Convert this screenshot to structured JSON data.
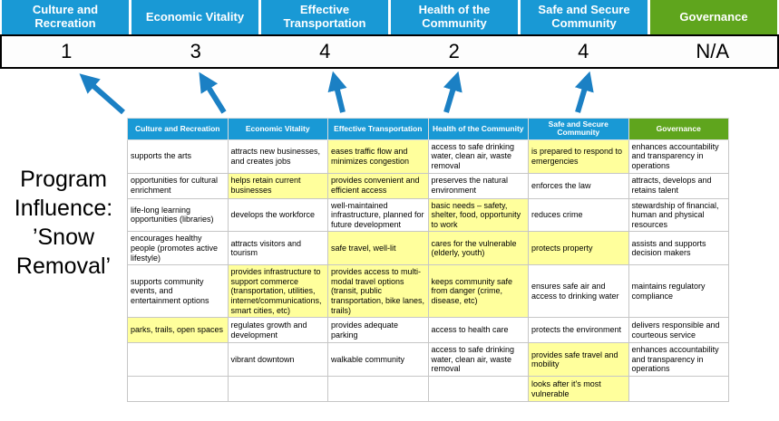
{
  "title": "Program Influence: ’Snow Removal’",
  "colors": {
    "header_blue": "#1999d5",
    "header_green": "#5fa51d",
    "highlight_yellow": "#ffff9c",
    "arrow_blue": "#1b80c4",
    "score_border": "#000000"
  },
  "scoreboard": {
    "columns": [
      {
        "label": "Culture and Recreation",
        "score": "1",
        "theme": "blue"
      },
      {
        "label": "Economic Vitality",
        "score": "3",
        "theme": "blue"
      },
      {
        "label": "Effective Transportation",
        "score": "4",
        "theme": "blue"
      },
      {
        "label": "Health of the Community",
        "score": "2",
        "theme": "blue"
      },
      {
        "label": "Safe and Secure Community",
        "score": "4",
        "theme": "blue"
      },
      {
        "label": "Governance",
        "score": "N/A",
        "theme": "green"
      }
    ]
  },
  "matrix": {
    "headers": [
      {
        "label": "Culture and Recreation",
        "theme": "blue"
      },
      {
        "label": "Economic Vitality",
        "theme": "blue"
      },
      {
        "label": "Effective Transportation",
        "theme": "blue"
      },
      {
        "label": "Health of the Community",
        "theme": "blue"
      },
      {
        "label": "Safe and Secure Community",
        "theme": "blue"
      },
      {
        "label": "Governance",
        "theme": "green"
      }
    ],
    "rows": [
      [
        {
          "text": "supports the arts",
          "highlight": false
        },
        {
          "text": "attracts new businesses, and creates jobs",
          "highlight": false
        },
        {
          "text": "eases traffic flow and minimizes congestion",
          "highlight": true
        },
        {
          "text": "access to safe drinking water, clean air, waste removal",
          "highlight": false
        },
        {
          "text": "is prepared to respond to emergencies",
          "highlight": true
        },
        {
          "text": "enhances accountability and transparency in operations",
          "highlight": false
        }
      ],
      [
        {
          "text": "opportunities for cultural enrichment",
          "highlight": false
        },
        {
          "text": "helps retain current businesses",
          "highlight": true
        },
        {
          "text": "provides convenient and efficient access",
          "highlight": true
        },
        {
          "text": "preserves the natural environment",
          "highlight": false
        },
        {
          "text": "enforces the law",
          "highlight": false
        },
        {
          "text": "attracts, develops and retains talent",
          "highlight": false
        }
      ],
      [
        {
          "text": "life-long learning opportunities (libraries)",
          "highlight": false
        },
        {
          "text": "develops the workforce",
          "highlight": false
        },
        {
          "text": "well-maintained infrastructure, planned for future development",
          "highlight": false
        },
        {
          "text": "basic needs – safety, shelter, food, opportunity to work",
          "highlight": true
        },
        {
          "text": "reduces crime",
          "highlight": false
        },
        {
          "text": "stewardship of financial, human and physical resources",
          "highlight": false
        }
      ],
      [
        {
          "text": "encourages healthy people (promotes active lifestyle)",
          "highlight": false
        },
        {
          "text": "attracts visitors and tourism",
          "highlight": false
        },
        {
          "text": "safe travel, well-lit",
          "highlight": true
        },
        {
          "text": "cares for the vulnerable (elderly, youth)",
          "highlight": true
        },
        {
          "text": "protects property",
          "highlight": true
        },
        {
          "text": "assists and supports decision makers",
          "highlight": false
        }
      ],
      [
        {
          "text": "supports community events, and entertainment options",
          "highlight": false
        },
        {
          "text": "provides infrastructure to support commerce (transportation, utilities, internet/communications, smart cities, etc)",
          "highlight": true
        },
        {
          "text": "provides access to multi-modal travel options (transit, public transportation, bike lanes, trails)",
          "highlight": true
        },
        {
          "text": "keeps community safe from danger (crime, disease, etc)",
          "highlight": true
        },
        {
          "text": "ensures safe air and access to drinking water",
          "highlight": false
        },
        {
          "text": "maintains regulatory compliance",
          "highlight": false
        }
      ],
      [
        {
          "text": "parks, trails, open spaces",
          "highlight": true
        },
        {
          "text": "regulates growth and development",
          "highlight": false
        },
        {
          "text": "provides adequate parking",
          "highlight": false
        },
        {
          "text": "access to health care",
          "highlight": false
        },
        {
          "text": "protects the environment",
          "highlight": false
        },
        {
          "text": "delivers responsible and courteous service",
          "highlight": false
        }
      ],
      [
        {
          "text": "",
          "highlight": false
        },
        {
          "text": "vibrant downtown",
          "highlight": false
        },
        {
          "text": "walkable community",
          "highlight": false
        },
        {
          "text": "access to safe drinking water, clean air, waste removal",
          "highlight": false
        },
        {
          "text": "provides safe travel and mobility",
          "highlight": true
        },
        {
          "text": "enhances accountability and transparency in operations",
          "highlight": false
        }
      ],
      [
        {
          "text": "",
          "highlight": false
        },
        {
          "text": "",
          "highlight": false
        },
        {
          "text": "",
          "highlight": false
        },
        {
          "text": "",
          "highlight": false
        },
        {
          "text": "looks after it's most vulnerable",
          "highlight": true
        },
        {
          "text": "",
          "highlight": false
        }
      ]
    ]
  }
}
